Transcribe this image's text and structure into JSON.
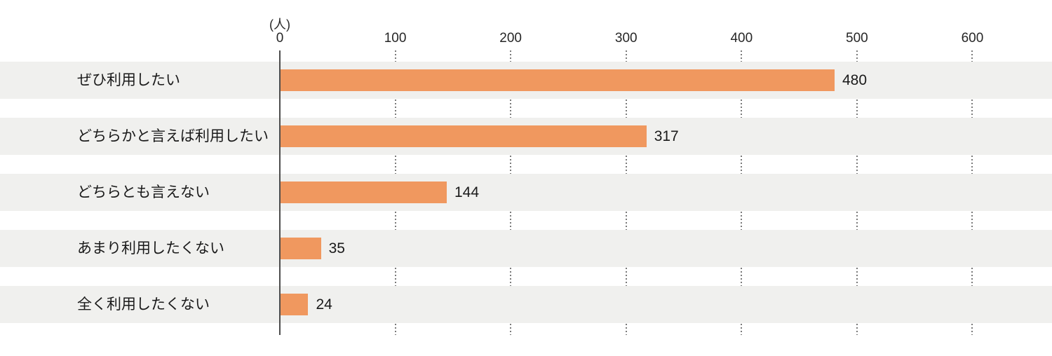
{
  "chart_data": {
    "type": "bar",
    "orientation": "horizontal",
    "title": "",
    "unit_label": "(人)",
    "categories": [
      "ぜひ利用したい",
      "どちらかと言えば利用したい",
      "どちらとも言えない",
      "あまり利用したくない",
      "全く利用したくない"
    ],
    "values": [
      480,
      317,
      144,
      35,
      24
    ],
    "x_ticks": [
      0,
      100,
      200,
      300,
      400,
      500,
      600
    ],
    "xlim": [
      0,
      600
    ],
    "grid": "dotted-vertical",
    "legend": "none",
    "colors": {
      "bar": "#F0985F",
      "row_band": "#F0F0EE",
      "axis_line": "#4d4d4d",
      "grid_dots": "#7a7a7a",
      "text": "#1a1a1a"
    }
  }
}
